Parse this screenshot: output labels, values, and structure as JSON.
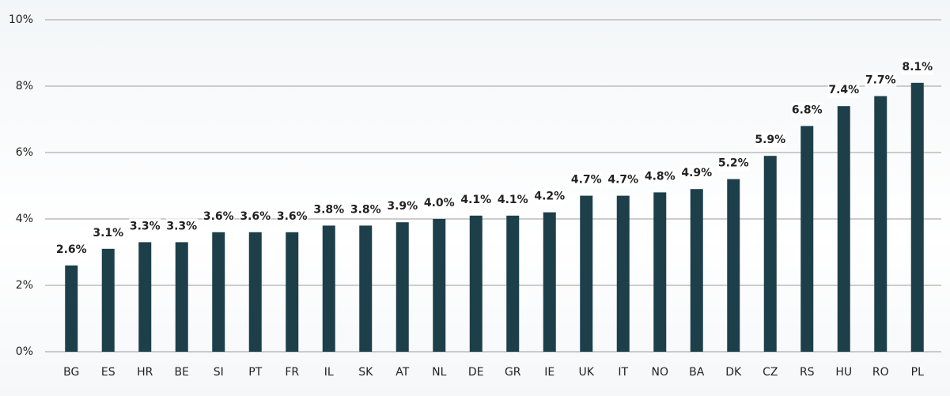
{
  "chart_data": {
    "type": "bar",
    "categories": [
      "BG",
      "ES",
      "HR",
      "BE",
      "SI",
      "PT",
      "FR",
      "IL",
      "SK",
      "AT",
      "NL",
      "DE",
      "GR",
      "IE",
      "UK",
      "IT",
      "NO",
      "BA",
      "DK",
      "CZ",
      "RS",
      "HU",
      "RO",
      "PL"
    ],
    "values": [
      2.6,
      3.1,
      3.3,
      3.3,
      3.6,
      3.6,
      3.6,
      3.8,
      3.8,
      3.9,
      4.0,
      4.1,
      4.1,
      4.2,
      4.7,
      4.7,
      4.8,
      4.9,
      5.2,
      5.9,
      6.8,
      7.4,
      7.7,
      8.1
    ],
    "value_labels": [
      "2.6%",
      "3.1%",
      "3.3%",
      "3.3%",
      "3.6%",
      "3.6%",
      "3.6%",
      "3.8%",
      "3.8%",
      "3.9%",
      "4.0%",
      "4.1%",
      "4.1%",
      "4.2%",
      "4.7%",
      "4.7%",
      "4.8%",
      "4.9%",
      "5.2%",
      "5.9%",
      "6.8%",
      "7.4%",
      "7.7%",
      "8.1%"
    ],
    "color": "#1d3f4a",
    "ylim": [
      0,
      10
    ],
    "yticks": [
      {
        "value": 0,
        "label": "0%"
      },
      {
        "value": 2,
        "label": "2%"
      },
      {
        "value": 4,
        "label": "4%"
      },
      {
        "value": 6,
        "label": "6%"
      },
      {
        "value": 8,
        "label": "8%"
      },
      {
        "value": 10,
        "label": "10%"
      }
    ],
    "grid": true
  }
}
